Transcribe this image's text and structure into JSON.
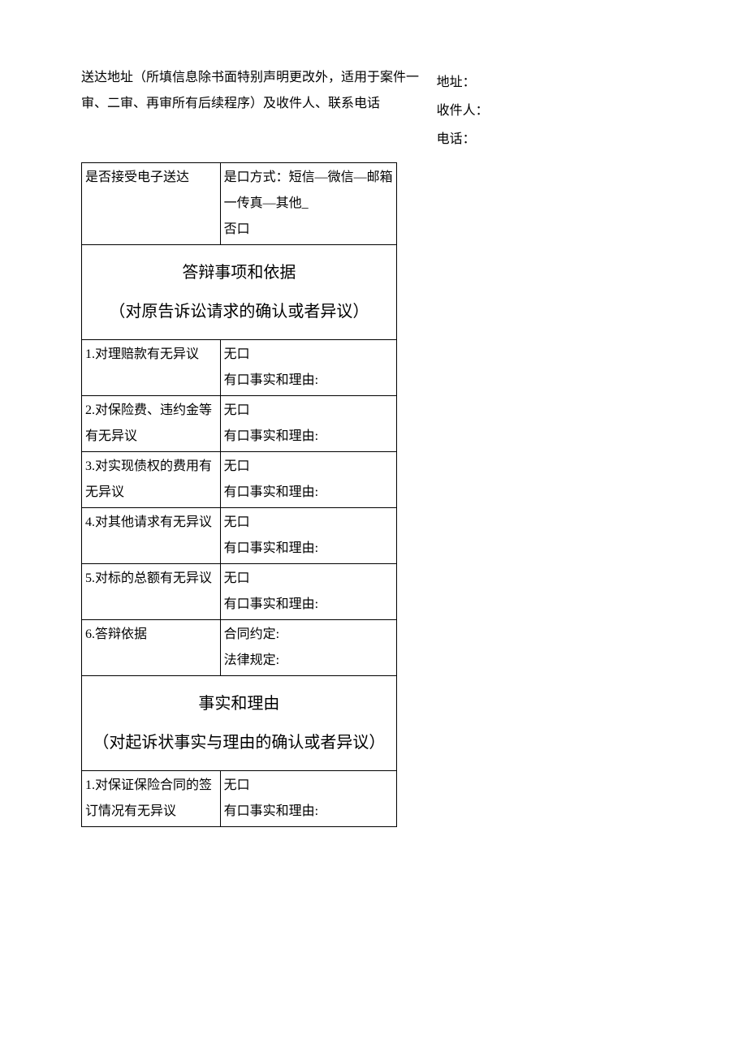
{
  "top": {
    "left_text": "送达地址（所填信息除书面特别声明更改外，适用于案件一审、二审、再审所有后续程序）及收件人、联系电话",
    "right_addr": "地址：",
    "right_recipient": "收件人：",
    "right_phone": "电话："
  },
  "row_electronic": {
    "label": "是否接受电子送达",
    "value": "是口方式：短信—微信—邮箱一传真—其他_\n否口"
  },
  "section1": "答辩事项和依据\n（对原告诉讼请求的确认或者异议）",
  "s1r1": {
    "label": "1.对理赔款有无异议",
    "value": "无口\n有口事实和理由:"
  },
  "s1r2": {
    "label": "2.对保险费、违约金等有无异议",
    "value": "无口\n有口事实和理由:"
  },
  "s1r3": {
    "label": "3.对实现债权的费用有无异议",
    "value": "无口\n有口事实和理由:"
  },
  "s1r4": {
    "label": "4.对其他请求有无异议",
    "value": "无口\n有口事实和理由:"
  },
  "s1r5": {
    "label": "5.对标的总额有无异议",
    "value": "无口\n有口事实和理由:"
  },
  "s1r6": {
    "label": "6.答辩依据",
    "value": "合同约定:\n法律规定:"
  },
  "section2": "事实和理由\n（对起诉状事实与理由的确认或者异议）",
  "s2r1": {
    "label": "1.对保证保险合同的签订情况有无异议",
    "value": "无口\n有口事实和理由:"
  }
}
